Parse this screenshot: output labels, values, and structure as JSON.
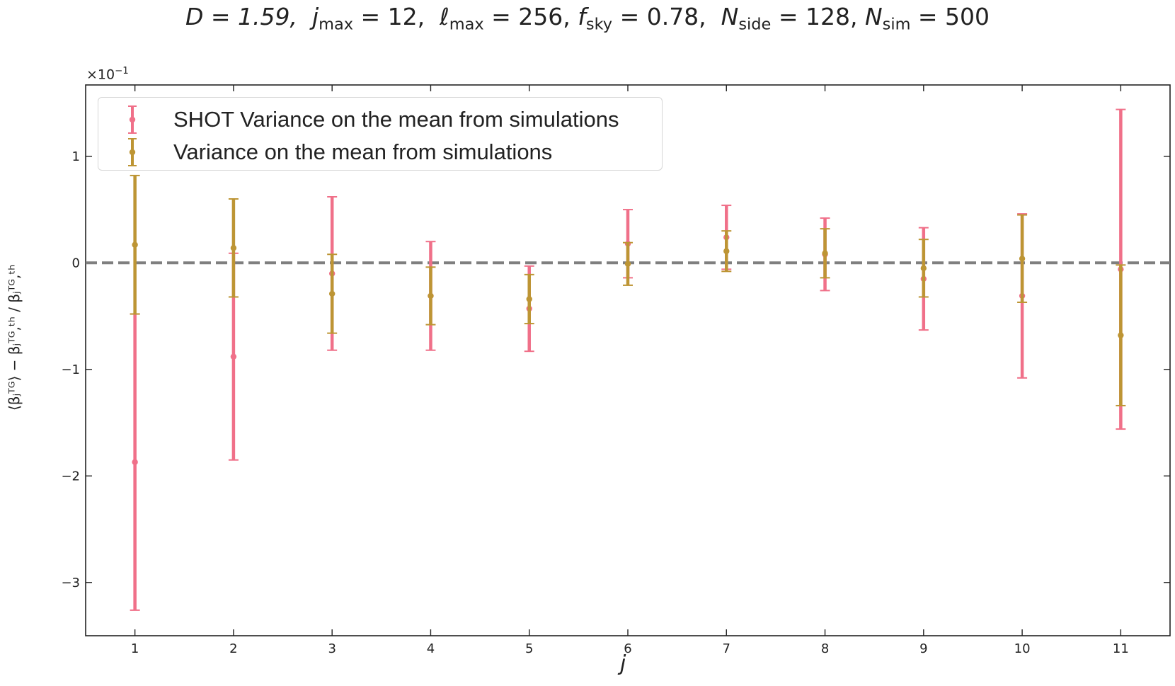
{
  "chart_data": {
    "type": "errorbar",
    "title_parts": {
      "D": "D = 1.59,",
      "jmax_sym": "j",
      "jmax_sub": "max",
      "jmax_val": "= 12,",
      "lmax_sym": "ℓ",
      "lmax_sub": "max",
      "lmax_val": "= 256,",
      "fsky_sym": "f",
      "fsky_sub": "sky",
      "fsky_val": "= 0.78,",
      "nside_sym": "N",
      "nside_sub": "side",
      "nside_val": "= 128,",
      "nsim_sym": "N",
      "nsim_sub": "sim",
      "nsim_val": "= 500"
    },
    "xlabel": "j",
    "ylabel": "(⟨β_j^TG⟩ − β_j^TG,th) / β_j^TG,th",
    "ylabel_display": "⟨βⱼᵀᴳ⟩ − βⱼᵀᴳ,ᵗʰ  /  βⱼᵀᴳ,ᵗʰ",
    "y_scale_text": "×10",
    "y_scale_exp": "−1",
    "xlim": [
      0.5,
      11.5
    ],
    "ylim": [
      -3.5,
      1.67
    ],
    "x_ticks": [
      1,
      2,
      3,
      4,
      5,
      6,
      7,
      8,
      9,
      10,
      11
    ],
    "y_ticks": [
      1,
      0,
      -1,
      -2,
      -3
    ],
    "y_tick_labels": [
      "1",
      "0",
      "−1",
      "−2",
      "−3"
    ],
    "reference_line": {
      "y": 0,
      "style": "dashed",
      "color": "#7f7f7f"
    },
    "legend_position": "upper left",
    "grid": false,
    "series": [
      {
        "name": "SHOT Variance on the mean from simulations",
        "color": "#f07089",
        "x": [
          1,
          2,
          3,
          4,
          5,
          6,
          7,
          8,
          9,
          10,
          11
        ],
        "y": [
          -1.87,
          -0.88,
          -0.1,
          -0.31,
          -0.43,
          0.18,
          0.24,
          0.08,
          -0.15,
          -0.31,
          -0.06
        ],
        "err": [
          1.39,
          0.97,
          0.72,
          0.51,
          0.4,
          0.32,
          0.3,
          0.34,
          0.48,
          0.77,
          1.5
        ]
      },
      {
        "name": "Variance on the mean from simulations",
        "color": "#bd9534",
        "x": [
          1,
          2,
          3,
          4,
          5,
          6,
          7,
          8,
          9,
          10,
          11
        ],
        "y": [
          0.17,
          0.14,
          -0.29,
          -0.31,
          -0.34,
          -0.01,
          0.11,
          0.09,
          -0.05,
          0.04,
          -0.68
        ],
        "err": [
          0.65,
          0.46,
          0.37,
          0.27,
          0.23,
          0.2,
          0.19,
          0.23,
          0.27,
          0.41,
          0.66
        ]
      }
    ]
  }
}
